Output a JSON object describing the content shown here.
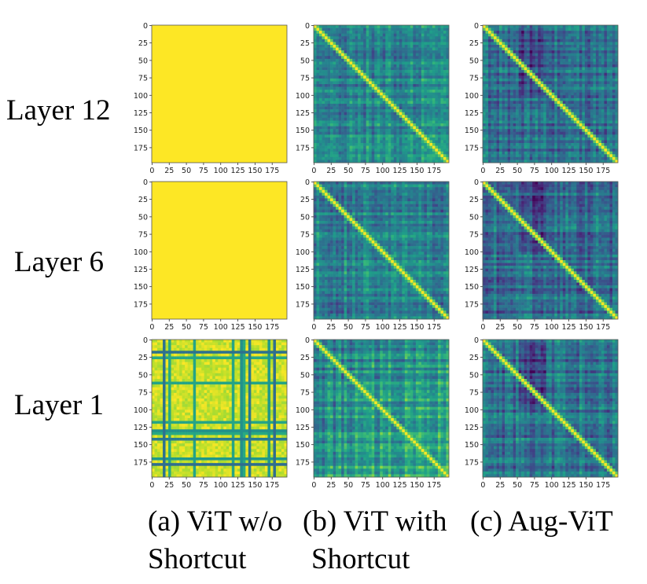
{
  "figure": {
    "row_labels": [
      "Layer 12",
      "Layer 6",
      "Layer 1"
    ],
    "captions": [
      {
        "line1": "(a) ViT w/o",
        "line2": "Shortcut"
      },
      {
        "line1": "(b) ViT with",
        "line2": "Shortcut"
      },
      {
        "line1": "(c) Aug-ViT",
        "line2": ""
      }
    ]
  },
  "colors": {
    "viridis": [
      "#440154",
      "#482878",
      "#3e4989",
      "#31688e",
      "#26828e",
      "#1f9e89",
      "#35b779",
      "#6ece58",
      "#b5de2b",
      "#fde725"
    ]
  },
  "chart_data": [
    {
      "type": "heatmap",
      "row": "Layer 12",
      "column": "(a) ViT w/o Shortcut",
      "size": 197,
      "uniform_value": 1.0,
      "x_ticks": [
        "0",
        "25",
        "50",
        "75",
        "100",
        "125",
        "150",
        "175"
      ],
      "y_ticks": [
        "0",
        "25",
        "50",
        "75",
        "100",
        "125",
        "150",
        "175"
      ],
      "xlim": [
        0,
        197
      ],
      "ylim": [
        197,
        0
      ]
    },
    {
      "type": "heatmap",
      "row": "Layer 12",
      "column": "(b) ViT with Shortcut",
      "size": 197,
      "mean": 0.45,
      "diagonal": 1.0,
      "x_ticks": [
        "0",
        "25",
        "50",
        "75",
        "100",
        "125",
        "150",
        "175"
      ],
      "y_ticks": [
        "0",
        "25",
        "50",
        "75",
        "100",
        "125",
        "150",
        "175"
      ],
      "xlim": [
        0,
        197
      ],
      "ylim": [
        197,
        0
      ]
    },
    {
      "type": "heatmap",
      "row": "Layer 12",
      "column": "(c) Aug-ViT",
      "size": 197,
      "mean": 0.3,
      "diagonal": 1.0,
      "x_ticks": [
        "0",
        "25",
        "50",
        "75",
        "100",
        "125",
        "150",
        "175"
      ],
      "y_ticks": [
        "0",
        "25",
        "50",
        "75",
        "100",
        "125",
        "150",
        "175"
      ],
      "xlim": [
        0,
        197
      ],
      "ylim": [
        197,
        0
      ]
    },
    {
      "type": "heatmap",
      "row": "Layer 6",
      "column": "(a) ViT w/o Shortcut",
      "size": 197,
      "uniform_value": 1.0,
      "x_ticks": [
        "0",
        "25",
        "50",
        "75",
        "100",
        "125",
        "150",
        "175"
      ],
      "y_ticks": [
        "0",
        "25",
        "50",
        "75",
        "100",
        "125",
        "150",
        "175"
      ],
      "xlim": [
        0,
        197
      ],
      "ylim": [
        197,
        0
      ]
    },
    {
      "type": "heatmap",
      "row": "Layer 6",
      "column": "(b) ViT with Shortcut",
      "size": 197,
      "mean": 0.42,
      "diagonal": 1.0,
      "x_ticks": [
        "0",
        "25",
        "50",
        "75",
        "100",
        "125",
        "150",
        "175"
      ],
      "y_ticks": [
        "0",
        "25",
        "50",
        "75",
        "100",
        "125",
        "150",
        "175"
      ],
      "xlim": [
        0,
        197
      ],
      "ylim": [
        197,
        0
      ]
    },
    {
      "type": "heatmap",
      "row": "Layer 6",
      "column": "(c) Aug-ViT",
      "size": 197,
      "mean": 0.28,
      "diagonal": 1.0,
      "x_ticks": [
        "0",
        "25",
        "50",
        "75",
        "100",
        "125",
        "150",
        "175"
      ],
      "y_ticks": [
        "0",
        "25",
        "50",
        "75",
        "100",
        "125",
        "150",
        "175"
      ],
      "xlim": [
        0,
        197
      ],
      "ylim": [
        197,
        0
      ]
    },
    {
      "type": "heatmap",
      "row": "Layer 1",
      "column": "(a) ViT w/o Shortcut",
      "size": 197,
      "mean": 0.82,
      "diagonal": 1.0,
      "x_ticks": [
        "0",
        "25",
        "50",
        "75",
        "100",
        "125",
        "150",
        "175"
      ],
      "y_ticks": [
        "0",
        "25",
        "50",
        "75",
        "100",
        "125",
        "150",
        "175"
      ],
      "xlim": [
        0,
        197
      ],
      "ylim": [
        197,
        0
      ]
    },
    {
      "type": "heatmap",
      "row": "Layer 1",
      "column": "(b) ViT with Shortcut",
      "size": 197,
      "mean": 0.38,
      "diagonal": 1.0,
      "x_ticks": [
        "0",
        "25",
        "50",
        "75",
        "100",
        "125",
        "150",
        "175"
      ],
      "y_ticks": [
        "0",
        "25",
        "50",
        "75",
        "100",
        "125",
        "150",
        "175"
      ],
      "xlim": [
        0,
        197
      ],
      "ylim": [
        197,
        0
      ]
    },
    {
      "type": "heatmap",
      "row": "Layer 1",
      "column": "(c) Aug-ViT",
      "size": 197,
      "mean": 0.33,
      "diagonal": 1.0,
      "x_ticks": [
        "0",
        "25",
        "50",
        "75",
        "100",
        "125",
        "150",
        "175"
      ],
      "y_ticks": [
        "0",
        "25",
        "50",
        "75",
        "100",
        "125",
        "150",
        "175"
      ],
      "xlim": [
        0,
        197
      ],
      "ylim": [
        197,
        0
      ]
    }
  ]
}
